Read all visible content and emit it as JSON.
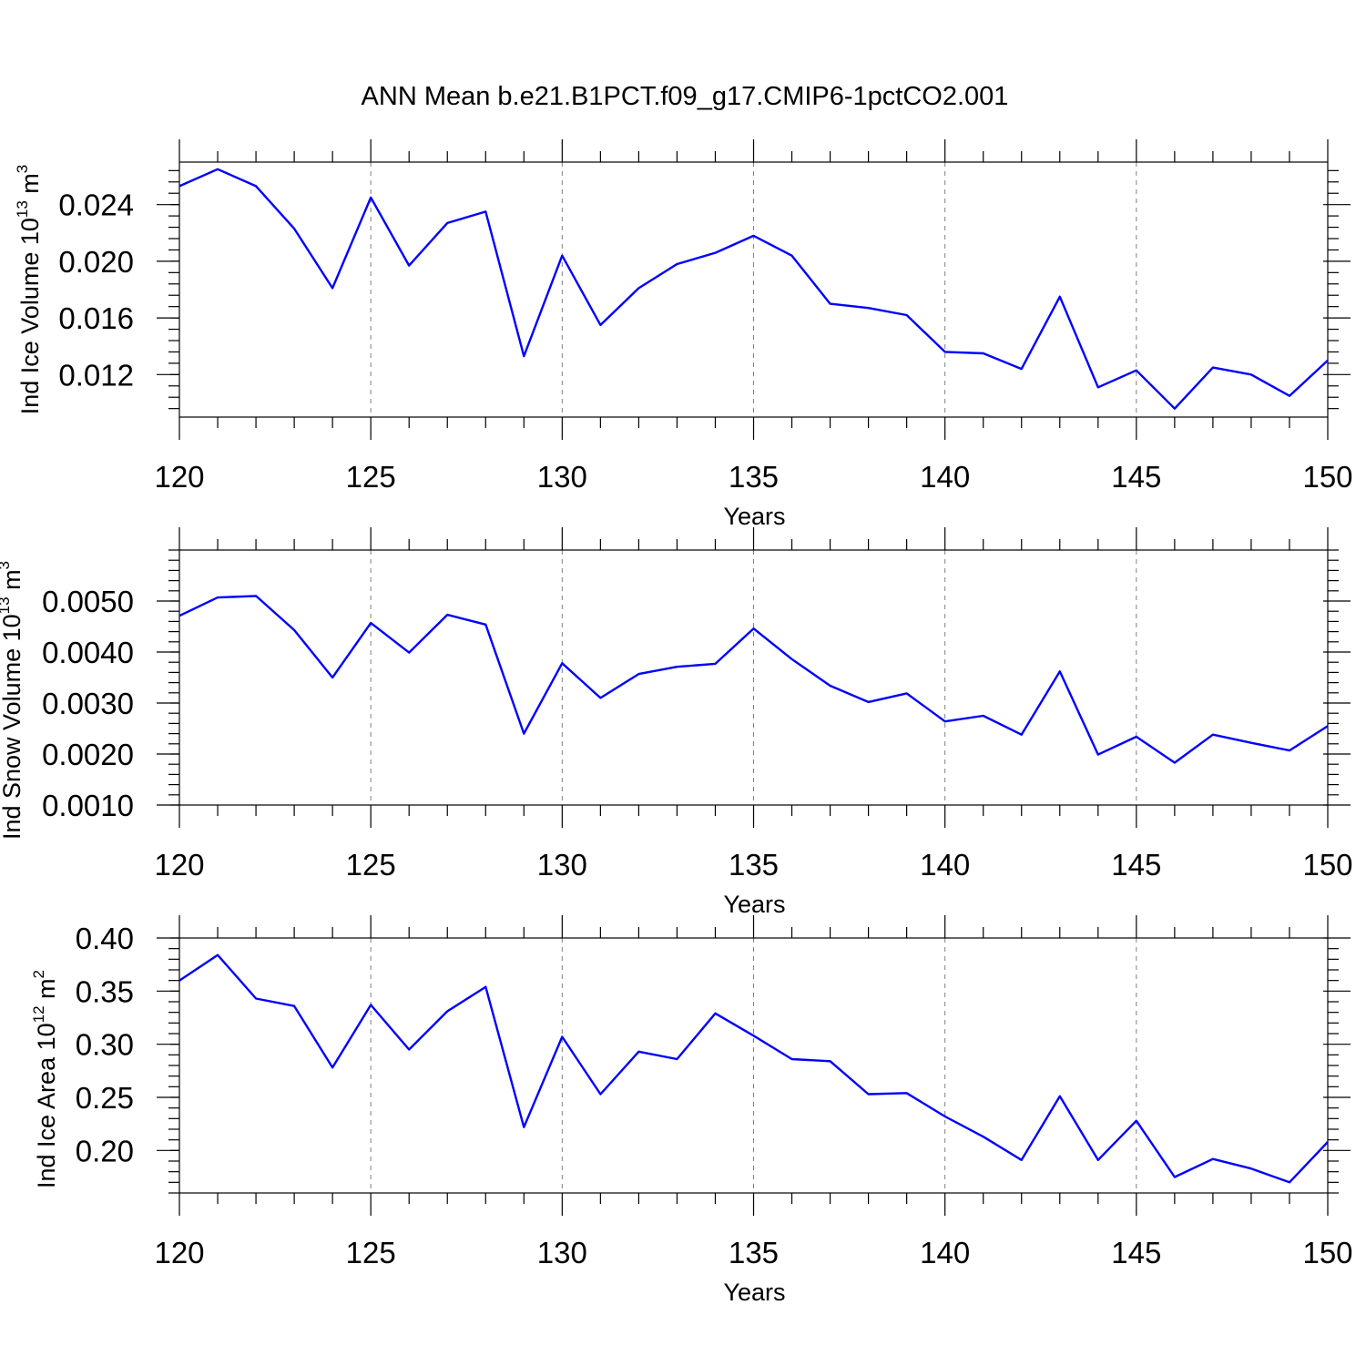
{
  "title": "ANN Mean b.e21.B1PCT.f09_g17.CMIP6-1pctCO2.001",
  "colors": {
    "line": "#0000ff",
    "axis": "#000000",
    "grid": "#808080"
  },
  "chart_data": [
    {
      "type": "line",
      "ylabel": {
        "main": "Ind Ice Volume 10",
        "sup": "13",
        "unit": " m",
        "unitsup": "3"
      },
      "xlabel": "Years",
      "xlim": [
        120,
        150
      ],
      "ylim": [
        0.009,
        0.027
      ],
      "xticks": [
        "120",
        "125",
        "130",
        "135",
        "140",
        "145",
        "150"
      ],
      "yticks": [
        "0.012",
        "0.016",
        "0.020",
        "0.024"
      ],
      "grid": "vertical-dashed",
      "series": [
        {
          "name": "Ind Ice Volume",
          "x": [
            120,
            121,
            122,
            123,
            124,
            125,
            126,
            127,
            128,
            129,
            130,
            131,
            132,
            133,
            134,
            135,
            136,
            137,
            138,
            139,
            140,
            141,
            142,
            143,
            144,
            145,
            146,
            147,
            148,
            149,
            150
          ],
          "values": [
            0.0253,
            0.0265,
            0.0253,
            0.0223,
            0.0181,
            0.0245,
            0.0197,
            0.0227,
            0.0235,
            0.0133,
            0.0204,
            0.0155,
            0.0181,
            0.0198,
            0.0206,
            0.0218,
            0.0204,
            0.017,
            0.0167,
            0.0162,
            0.0136,
            0.0135,
            0.0124,
            0.0175,
            0.0111,
            0.0123,
            0.0096,
            0.0125,
            0.012,
            0.0105,
            0.013
          ]
        }
      ]
    },
    {
      "type": "line",
      "ylabel": {
        "main": "Ind Snow Volume 10",
        "sup": "13",
        "unit": " m",
        "unitsup": "3"
      },
      "xlabel": "Years",
      "xlim": [
        120,
        150
      ],
      "ylim": [
        0.001,
        0.006
      ],
      "xticks": [
        "120",
        "125",
        "130",
        "135",
        "140",
        "145",
        "150"
      ],
      "yticks": [
        "0.0010",
        "0.0020",
        "0.0030",
        "0.0040",
        "0.0050"
      ],
      "grid": "vertical-dashed",
      "series": [
        {
          "name": "Ind Snow Volume",
          "x": [
            120,
            121,
            122,
            123,
            124,
            125,
            126,
            127,
            128,
            129,
            130,
            131,
            132,
            133,
            134,
            135,
            136,
            137,
            138,
            139,
            140,
            141,
            142,
            143,
            144,
            145,
            146,
            147,
            148,
            149,
            150
          ],
          "values": [
            0.00471,
            0.00507,
            0.0051,
            0.00443,
            0.0035,
            0.00457,
            0.00399,
            0.00473,
            0.00454,
            0.0024,
            0.00378,
            0.0031,
            0.00357,
            0.00371,
            0.00377,
            0.00446,
            0.00386,
            0.00334,
            0.00302,
            0.00319,
            0.00264,
            0.00275,
            0.00238,
            0.00362,
            0.00199,
            0.00234,
            0.00183,
            0.00238,
            0.00222,
            0.00207,
            0.00255
          ]
        }
      ]
    },
    {
      "type": "line",
      "ylabel": {
        "main": "Ind Ice Area 10",
        "sup": "12",
        "unit": " m",
        "unitsup": "2"
      },
      "xlabel": "Years",
      "xlim": [
        120,
        150
      ],
      "ylim": [
        0.16,
        0.4
      ],
      "xticks": [
        "120",
        "125",
        "130",
        "135",
        "140",
        "145",
        "150"
      ],
      "yticks": [
        "0.20",
        "0.25",
        "0.30",
        "0.35",
        "0.40"
      ],
      "grid": "vertical-dashed",
      "series": [
        {
          "name": "Ind Ice Area",
          "x": [
            120,
            121,
            122,
            123,
            124,
            125,
            126,
            127,
            128,
            129,
            130,
            131,
            132,
            133,
            134,
            135,
            136,
            137,
            138,
            139,
            140,
            141,
            142,
            143,
            144,
            145,
            146,
            147,
            148,
            149,
            150
          ],
          "values": [
            0.36,
            0.384,
            0.343,
            0.336,
            0.278,
            0.337,
            0.295,
            0.331,
            0.354,
            0.222,
            0.307,
            0.253,
            0.293,
            0.286,
            0.329,
            0.308,
            0.286,
            0.284,
            0.253,
            0.254,
            0.232,
            0.213,
            0.191,
            0.251,
            0.191,
            0.228,
            0.175,
            0.192,
            0.183,
            0.17,
            0.208
          ]
        }
      ]
    }
  ]
}
